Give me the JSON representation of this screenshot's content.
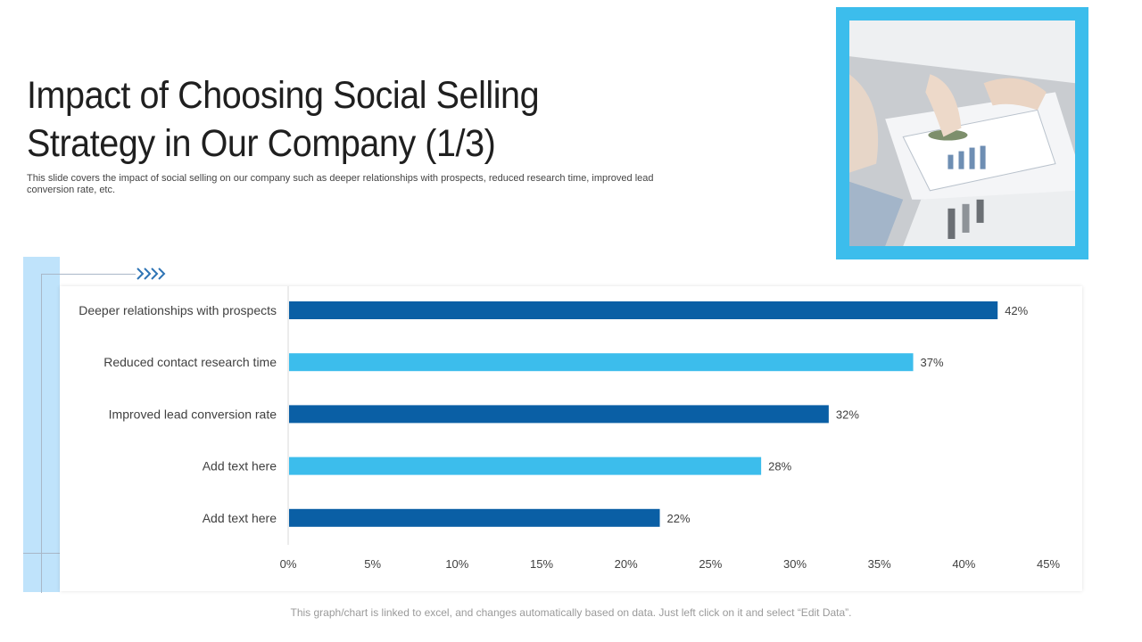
{
  "slide": {
    "title": "Impact of Choosing Social Selling Strategy in Our Company (1/3)",
    "subtitle": "This slide covers the impact of social selling on our company such as deeper relationships with prospects, reduced research time, improved lead conversion rate, etc.",
    "footnote": "This graph/chart is linked to excel, and changes automatically based on data. Just left click on it and select “Edit Data”.",
    "accent_color": "#3cbdec",
    "strip_color": "#bfe3fb",
    "photo_icon": "business-meeting-photo",
    "arrow_icon": "chevron-arrows-icon"
  },
  "chart_data": {
    "type": "bar",
    "orientation": "horizontal",
    "title": "",
    "xlabel": "",
    "ylabel": "",
    "categories": [
      "Deeper relationships with prospects",
      "Reduced contact research time",
      "Improved lead conversion rate",
      "Add text here",
      "Add text here"
    ],
    "values": [
      42,
      37,
      32,
      28,
      22
    ],
    "value_labels": [
      "42%",
      "37%",
      "32%",
      "28%",
      "22%"
    ],
    "bar_colors": [
      "#0a5fa5",
      "#3cbdec",
      "#0a5fa5",
      "#3cbdec",
      "#0a5fa5"
    ],
    "xlim": [
      0,
      45
    ],
    "xticks": [
      0,
      5,
      10,
      15,
      20,
      25,
      30,
      35,
      40,
      45
    ],
    "xtick_labels": [
      "0%",
      "5%",
      "10%",
      "15%",
      "20%",
      "25%",
      "30%",
      "35%",
      "40%",
      "45%"
    ],
    "grid": false,
    "legend": "none"
  }
}
